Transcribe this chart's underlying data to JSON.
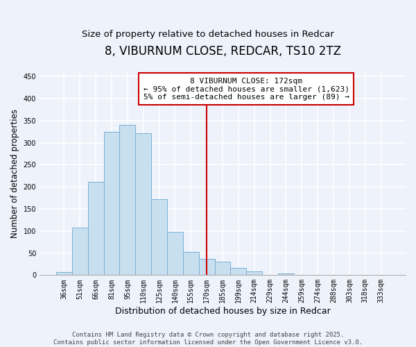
{
  "title": "8, VIBURNUM CLOSE, REDCAR, TS10 2TZ",
  "subtitle": "Size of property relative to detached houses in Redcar",
  "xlabel": "Distribution of detached houses by size in Redcar",
  "ylabel": "Number of detached properties",
  "bar_labels": [
    "36sqm",
    "51sqm",
    "66sqm",
    "81sqm",
    "95sqm",
    "110sqm",
    "125sqm",
    "140sqm",
    "155sqm",
    "170sqm",
    "185sqm",
    "199sqm",
    "214sqm",
    "229sqm",
    "244sqm",
    "259sqm",
    "274sqm",
    "288sqm",
    "303sqm",
    "318sqm",
    "333sqm"
  ],
  "bar_heights": [
    7,
    107,
    212,
    325,
    340,
    321,
    172,
    98,
    52,
    37,
    30,
    17,
    9,
    0,
    4,
    0,
    0,
    0,
    0,
    0,
    0
  ],
  "bar_color": "#c8dff0",
  "bar_edge_color": "#7ab0d4",
  "vline_x": 9,
  "vline_color": "#cc0000",
  "annotation_title": "8 VIBURNUM CLOSE: 172sqm",
  "annotation_line1": "← 95% of detached houses are smaller (1,623)",
  "annotation_line2": "5% of semi-detached houses are larger (89) →",
  "annotation_box_color": "#ffffff",
  "annotation_box_edge": "#cc0000",
  "ylim": [
    0,
    460
  ],
  "yticks": [
    0,
    50,
    100,
    150,
    200,
    250,
    300,
    350,
    400,
    450
  ],
  "footer_line1": "Contains HM Land Registry data © Crown copyright and database right 2025.",
  "footer_line2": "Contains public sector information licensed under the Open Government Licence v3.0.",
  "background_color": "#eef2fb",
  "grid_color": "#ffffff",
  "title_fontsize": 12,
  "subtitle_fontsize": 9.5,
  "xlabel_fontsize": 9,
  "ylabel_fontsize": 8.5,
  "tick_fontsize": 7,
  "annotation_fontsize": 8,
  "footer_fontsize": 6.5
}
